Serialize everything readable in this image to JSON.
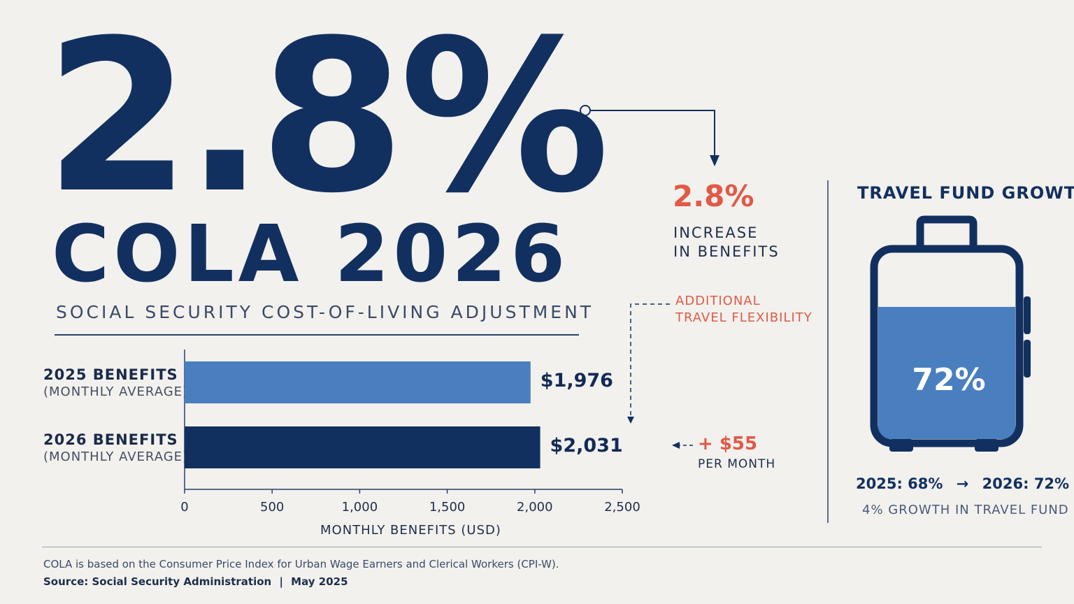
{
  "hero": {
    "big_value": "2.8%",
    "title": "COLA 2026",
    "subtitle": "SOCIAL SECURITY COST-OF-LIVING ADJUSTMENT"
  },
  "callout": {
    "pct": "2.8%",
    "line1": "INCREASE",
    "line2": "IN BENEFITS",
    "extra_line1": "ADDITIONAL",
    "extra_line2": "TRAVEL FLEXIBILITY"
  },
  "chart_data": {
    "type": "bar",
    "orientation": "horizontal",
    "categories": [
      {
        "main": "2025 BENEFITS",
        "sub": "(MONTHLY AVERAGE)"
      },
      {
        "main": "2026 BENEFITS",
        "sub": "(MONTHLY AVERAGE)"
      }
    ],
    "values": [
      1976,
      2031
    ],
    "value_labels": [
      "$1,976",
      "$2,031"
    ],
    "colors": [
      "#4a7fbf",
      "#12305f"
    ],
    "xlim": [
      0,
      2500
    ],
    "xticks": [
      0,
      500,
      1000,
      1500,
      2000,
      2500
    ],
    "xtick_labels": [
      "0",
      "500",
      "1,000",
      "1,500",
      "2,000",
      "2,500"
    ],
    "xlabel": "MONTHLY BENEFITS (USD)",
    "grid": false,
    "annotation": {
      "amount": "+ $55",
      "note": "PER MONTH",
      "color": "#e05a47"
    }
  },
  "travel": {
    "title": "TRAVEL FUND GROWTH",
    "fill_fraction": 0.72,
    "fill_label": "72%",
    "comparison_from": "2025: 68%",
    "comparison_to": "2026: 72%",
    "note": "4% GROWTH IN TRAVEL FUND",
    "fill_color": "#4a7fbf",
    "icon": "suitcase-icon"
  },
  "footer": {
    "note": "COLA is based on the Consumer Price Index for Urban Wage Earners and Clerical Workers (CPI-W).",
    "source": "Source: Social Security Administration",
    "separator": "|",
    "date": "May 2025"
  }
}
